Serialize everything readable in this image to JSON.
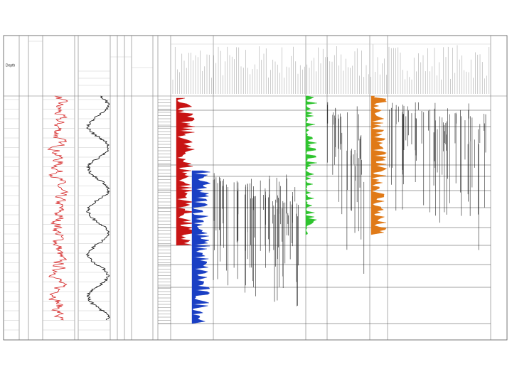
{
  "header": {
    "depth_label": "Depth"
  }
}
